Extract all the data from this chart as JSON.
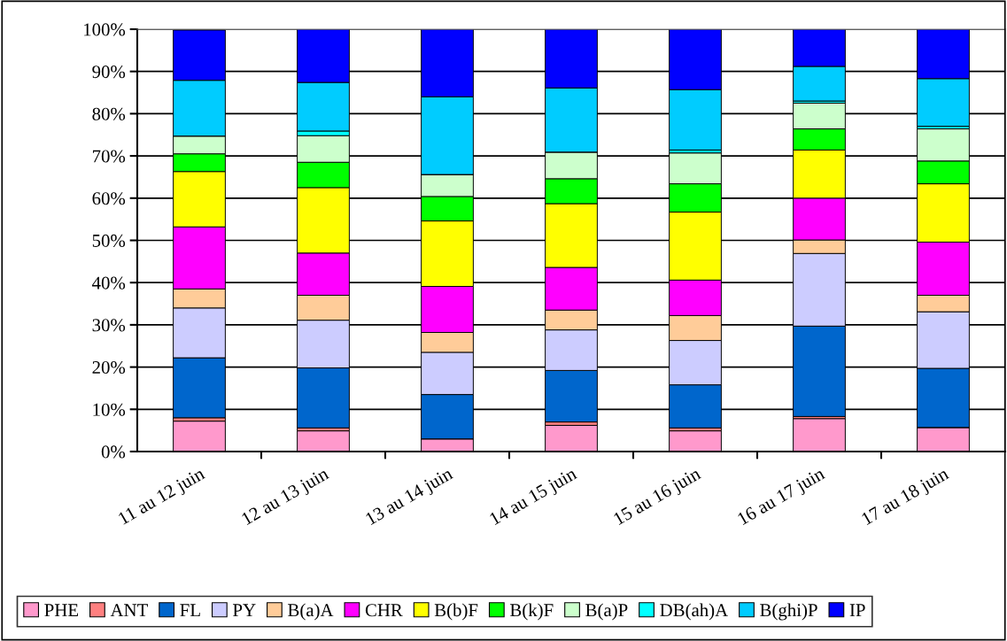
{
  "chart_data": {
    "type": "bar",
    "stacked": true,
    "categories": [
      "11 au 12 juin",
      "12 au 13 juin",
      "13 au 14 juin",
      "14 au 15 juin",
      "15 au 16 juin",
      "16 au 17 juin",
      "17 au 18 juin"
    ],
    "series": [
      {
        "name": "PHE",
        "color": "#ff99cc",
        "values": [
          7.2,
          4.9,
          3.0,
          6.2,
          4.9,
          7.8,
          5.7
        ]
      },
      {
        "name": "ANT",
        "color": "#ff8080",
        "values": [
          0.8,
          0.7,
          0,
          0.8,
          0.7,
          0.5,
          0
        ]
      },
      {
        "name": "FL",
        "color": "#0066cc",
        "values": [
          14.2,
          14.2,
          10.5,
          12.2,
          10.2,
          21.4,
          14.0
        ]
      },
      {
        "name": "PY",
        "color": "#ccccff",
        "values": [
          11.8,
          11.3,
          10.0,
          9.6,
          10.5,
          17.2,
          13.4
        ]
      },
      {
        "name": "B(a)A",
        "color": "#ffcc99",
        "values": [
          4.5,
          5.9,
          4.7,
          4.7,
          5.9,
          3.2,
          3.9
        ]
      },
      {
        "name": "CHR",
        "color": "#ff00ff",
        "values": [
          14.7,
          10.0,
          10.9,
          10.1,
          8.4,
          9.9,
          12.6
        ]
      },
      {
        "name": "B(b)F",
        "color": "#ffff00",
        "values": [
          13.1,
          15.5,
          15.5,
          15.1,
          16.1,
          11.4,
          13.8
        ]
      },
      {
        "name": "B(k)F",
        "color": "#00ff00",
        "values": [
          4.2,
          6.0,
          5.8,
          5.9,
          6.7,
          5.0,
          5.4
        ]
      },
      {
        "name": "B(a)P",
        "color": "#ccffcc",
        "values": [
          4.2,
          6.3,
          5.2,
          6.3,
          7.3,
          6.1,
          7.6
        ]
      },
      {
        "name": "DB(ah)A",
        "color": "#00ffff",
        "values": [
          null,
          1.1,
          0,
          0,
          0.7,
          0.5,
          0.6
        ]
      },
      {
        "name": "B(ghi)P",
        "color": "#00ccff",
        "values": [
          13.2,
          11.5,
          18.4,
          15.2,
          14.3,
          8.2,
          11.3
        ]
      },
      {
        "name": "IP",
        "color": "#0000ff",
        "values": [
          11.9,
          12.6,
          16.0,
          13.9,
          14.3,
          8.8,
          11.7
        ]
      }
    ],
    "ylim": [
      0,
      100
    ],
    "yticks": [
      {
        "value": 0,
        "label": "0%"
      },
      {
        "value": 10,
        "label": "10%"
      },
      {
        "value": 20,
        "label": "20%"
      },
      {
        "value": 30,
        "label": "30%"
      },
      {
        "value": 40,
        "label": "40%"
      },
      {
        "value": 50,
        "label": "50%"
      },
      {
        "value": 60,
        "label": "60%"
      },
      {
        "value": 70,
        "label": "70%"
      },
      {
        "value": 80,
        "label": "80%"
      },
      {
        "value": 90,
        "label": "90%"
      },
      {
        "value": 100,
        "label": "100%"
      }
    ],
    "grid": "y",
    "legend": "bottom"
  }
}
